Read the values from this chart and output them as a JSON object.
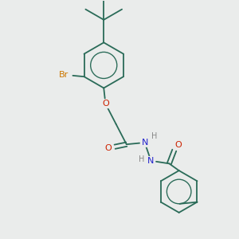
{
  "bg_color": "#eaeceb",
  "bond_color": "#2a6b58",
  "br_color": "#cc7700",
  "o_color": "#cc2200",
  "n_color": "#2222cc",
  "h_color": "#888888",
  "font_size": 8.0,
  "bond_lw": 1.3,
  "fig_w": 3.0,
  "fig_h": 3.0,
  "xlim": [
    0.0,
    5.2
  ],
  "ylim": [
    0.0,
    6.8
  ]
}
